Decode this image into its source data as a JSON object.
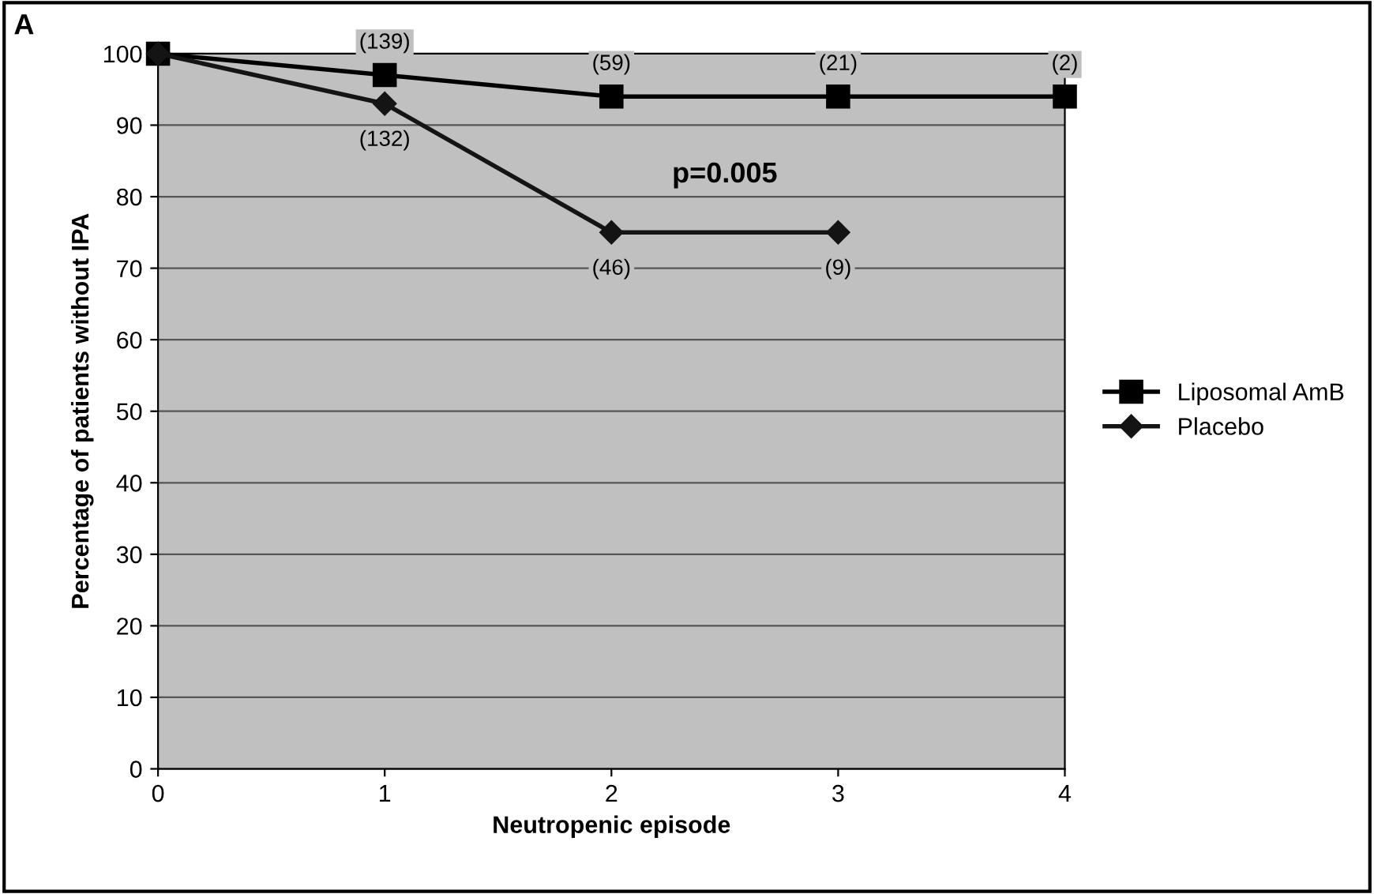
{
  "chart_data": {
    "type": "line",
    "xlabel": "Neutropenic episode",
    "ylabel": "Percentage of patients without IPA",
    "x": [
      0,
      1,
      2,
      3,
      4
    ],
    "series": [
      {
        "name": "Liposomal AmB",
        "color": "#000000",
        "marker": "square",
        "values": [
          100,
          97,
          94,
          94,
          94
        ]
      },
      {
        "name": "Placebo",
        "color": "#141414",
        "marker": "diamond",
        "values": [
          100,
          93,
          75,
          75,
          null
        ]
      }
    ],
    "xlim": [
      0,
      4
    ],
    "xticks": [
      0,
      1,
      2,
      3,
      4
    ],
    "ylim": [
      0,
      100
    ],
    "yticks": [
      0,
      10,
      20,
      30,
      40,
      50,
      60,
      70,
      80,
      90,
      100
    ],
    "grid": "y",
    "legend": "right",
    "line_style": "solid",
    "annotations": [
      "A",
      {
        "text": "(139)",
        "x": 1,
        "y": 97
      },
      {
        "text": "(59)",
        "x": 2,
        "y": 94
      },
      {
        "text": "(21)",
        "x": 3,
        "y": 94
      },
      {
        "text": "(2)",
        "x": 4,
        "y": 94
      },
      {
        "text": "(132)",
        "x": 1,
        "y": 93
      },
      {
        "text": "(46)",
        "x": 2,
        "y": 75
      },
      {
        "text": "(9)",
        "x": 3,
        "y": 75
      },
      "p=0.005"
    ]
  }
}
